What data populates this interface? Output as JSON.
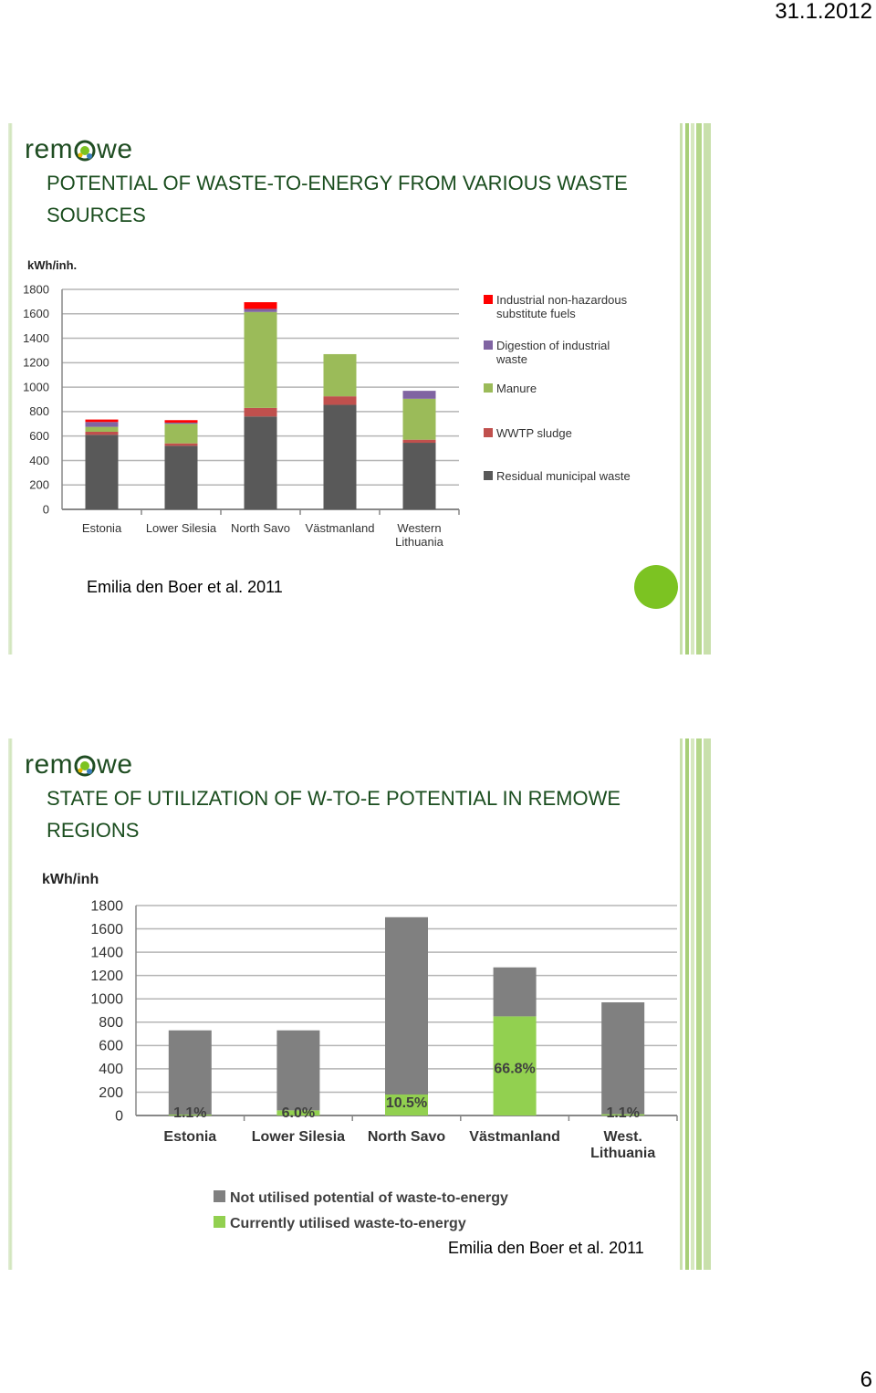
{
  "page": {
    "date": "31.1.2012",
    "number": "6"
  },
  "slide1": {
    "logo": {
      "left": "rem",
      "right": "we"
    },
    "title": "Potential of Waste-to-Energy from various waste sources",
    "credit": "Emilia den Boer et al. 2011"
  },
  "slide2": {
    "logo": {
      "left": "rem",
      "right": "we"
    },
    "title": "State of utilization of W-to-E potential in REMOWE regions",
    "credit": "Emilia den Boer et al. 2011"
  },
  "chart_data": [
    {
      "type": "bar",
      "stacked": true,
      "ylabel": "kWh/inh.",
      "ylim": [
        0,
        1800
      ],
      "yticks": [
        0,
        200,
        400,
        600,
        800,
        1000,
        1200,
        1400,
        1600,
        1800
      ],
      "categories": [
        "Estonia",
        "Lower Silesia",
        "North Savo",
        "Västmanland",
        "Western Lithuania"
      ],
      "series": [
        {
          "name": "Residual municipal waste",
          "color": "#595959",
          "values": [
            610,
            520,
            760,
            855,
            545
          ]
        },
        {
          "name": "WWTP sludge",
          "color": "#c0504d",
          "values": [
            25,
            20,
            70,
            70,
            25
          ]
        },
        {
          "name": "Manure",
          "color": "#9bbb59",
          "values": [
            40,
            160,
            785,
            345,
            335
          ]
        },
        {
          "name": "Digestion of industrial waste",
          "color": "#8064a2",
          "values": [
            40,
            10,
            25,
            0,
            65
          ]
        },
        {
          "name": "Industrial non-hazardous substitute fuels",
          "color": "#ff0000",
          "values": [
            20,
            20,
            55,
            0,
            0
          ]
        }
      ],
      "grid": true,
      "legend": "right"
    },
    {
      "type": "bar",
      "stacked": true,
      "ylabel": "kWh/inh",
      "ylim": [
        0,
        1800
      ],
      "yticks": [
        0,
        200,
        400,
        600,
        800,
        1000,
        1200,
        1400,
        1600,
        1800
      ],
      "categories": [
        "Estonia",
        "Lower Silesia",
        "North Savo",
        "Västmanland",
        "West. Lithuania"
      ],
      "series": [
        {
          "name": "Currently utilised waste-to-energy",
          "color": "#92d050",
          "values": [
            8,
            44,
            180,
            850,
            11
          ]
        },
        {
          "name": "Not utilised potential of waste-to-energy",
          "color": "#808080",
          "values": [
            722,
            686,
            1520,
            420,
            959
          ]
        }
      ],
      "annotations": [
        "1.1%",
        "6.0%",
        "10.5%",
        "66.8%",
        "1.1%"
      ],
      "grid": true,
      "legend": "bottom"
    }
  ]
}
